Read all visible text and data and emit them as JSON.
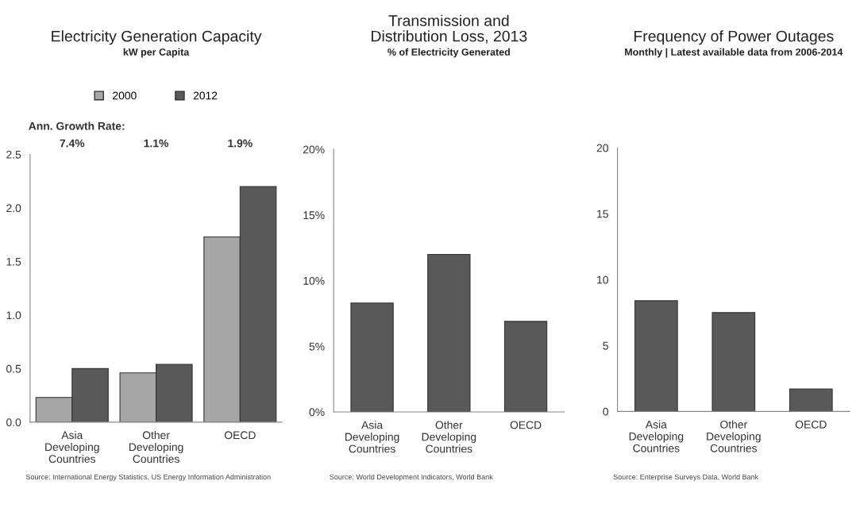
{
  "chart_data": [
    {
      "type": "bar",
      "title": "Electricity Generation Capacity",
      "subtitle": "kW per Capita",
      "categories": [
        "Asia\nDeveloping\nCountries",
        "Other\nDeveloping\nCountries",
        "OECD"
      ],
      "series": [
        {
          "name": "2000",
          "color": "#a6a6a6",
          "values": [
            0.23,
            0.46,
            1.73
          ]
        },
        {
          "name": "2012",
          "color": "#595959",
          "values": [
            0.5,
            0.54,
            2.2
          ]
        }
      ],
      "ylim": [
        0,
        2.5
      ],
      "yticks": [
        {
          "value": 0,
          "label": "0.0"
        },
        0.5,
        {
          "value": 1,
          "label": "1.0"
        },
        1.5,
        {
          "value": 2,
          "label": "2.0"
        },
        2.5
      ],
      "legend": "top",
      "grid": false,
      "annotations": [
        "Ann. Growth Rate:",
        "7.4%",
        "1.1%",
        "1.9%",
        "Source: International Energy Statistics, US Energy Information Administration"
      ]
    },
    {
      "type": "bar",
      "title": "Transmission and\nDistribution Loss, 2013",
      "subtitle": "% of Electricity Generated",
      "categories": [
        "Asia\nDeveloping\nCountries",
        "Other\nDeveloping\nCountries",
        "OECD"
      ],
      "series": [
        {
          "color": "#595959",
          "values": [
            8.3,
            12.0,
            6.9
          ]
        }
      ],
      "ylim": [
        0,
        20
      ],
      "yticks": [
        {
          "value": 0,
          "label": "0%"
        },
        {
          "value": 5,
          "label": "5%"
        },
        {
          "value": 10,
          "label": "10%"
        },
        {
          "value": 15,
          "label": "15%"
        },
        {
          "value": 20,
          "label": "20%"
        }
      ],
      "grid": false,
      "annotations": [
        "Source: World Development Indicators, World Bank"
      ]
    },
    {
      "type": "bar",
      "title": "Frequency of Power Outages",
      "subtitle": "Monthly | Latest available data from 2006-2014",
      "categories": [
        "Asia\nDeveloping\nCountries",
        "Other\nDeveloping\nCountries",
        "OECD"
      ],
      "series": [
        {
          "color": "#595959",
          "values": [
            8.4,
            7.5,
            1.7
          ]
        }
      ],
      "ylim": [
        0,
        20
      ],
      "yticks": [
        0,
        5,
        10,
        15,
        20
      ],
      "grid": false,
      "annotations": [
        "Source: Enterprise Surveys Data, World Bank"
      ]
    }
  ]
}
